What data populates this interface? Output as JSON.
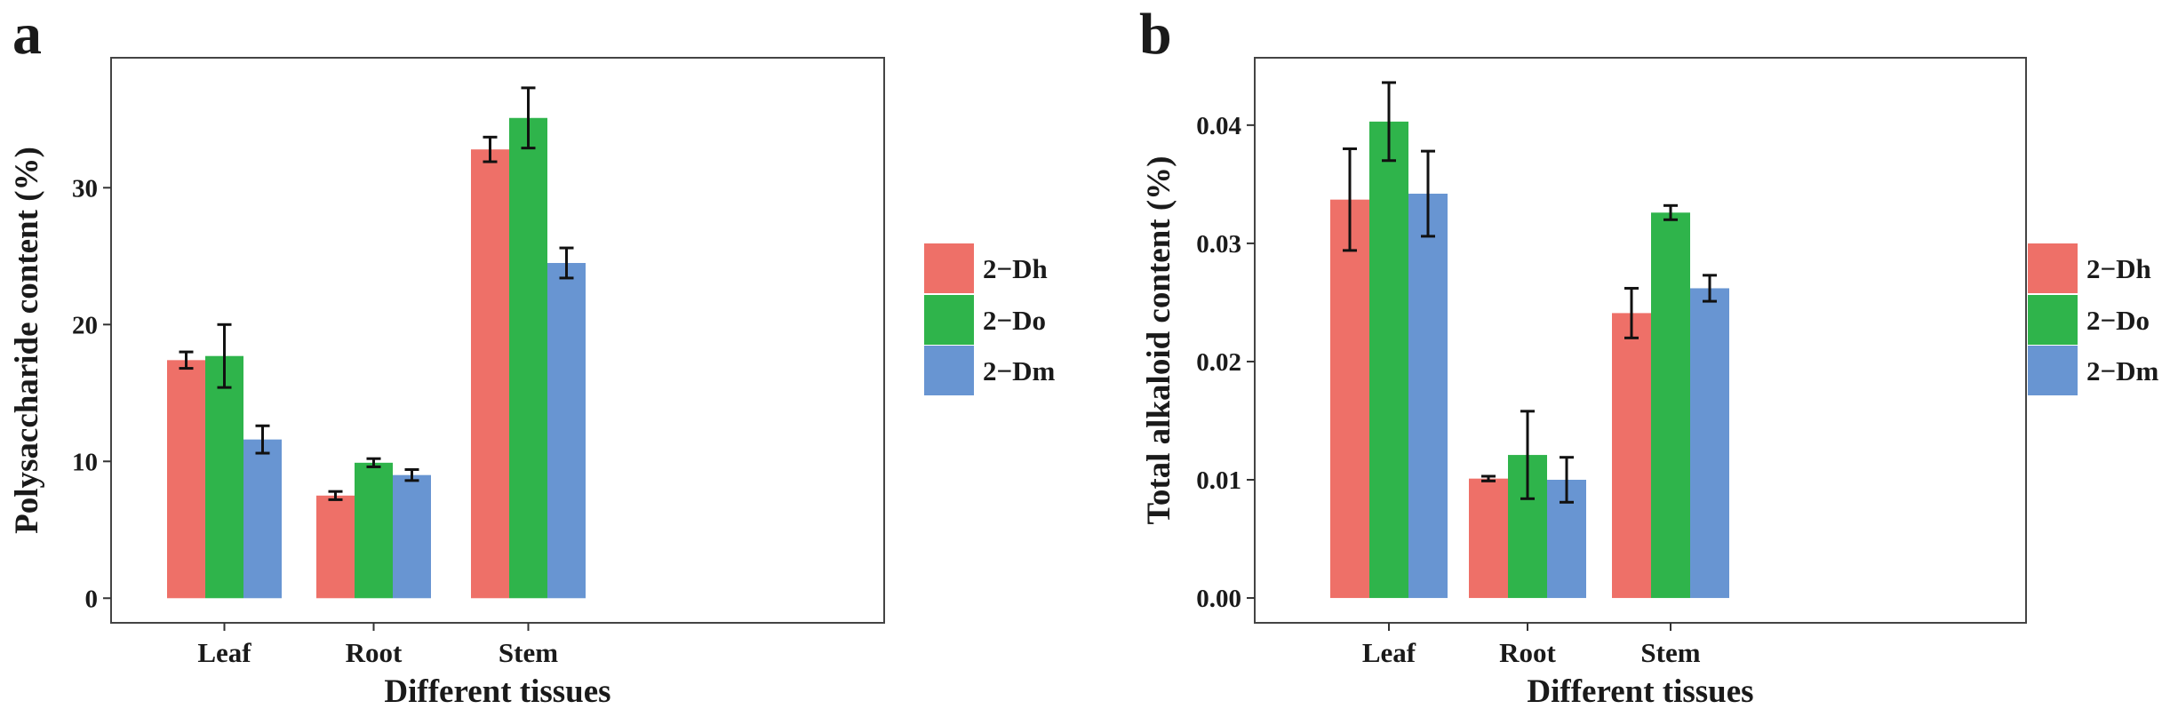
{
  "colors": {
    "2-Dh": "#EE7068",
    "2-Do": "#2FB44B",
    "2-Dm": "#6895D2"
  },
  "chart_data": [
    {
      "type": "bar",
      "panel": "a",
      "title": "",
      "xlabel": "Different tissues",
      "ylabel": "Polysaccharide content (%)",
      "categories": [
        "Leaf",
        "Root",
        "Stem"
      ],
      "ylim": [
        -1.8,
        39.5
      ],
      "yticks": [
        0,
        10,
        20,
        30
      ],
      "ytick_labels": [
        "0",
        "10",
        "20",
        "30"
      ],
      "series": [
        {
          "name": "2−Dh",
          "key": "2-Dh",
          "values": [
            17.4,
            7.5,
            32.8
          ],
          "errors": [
            0.6,
            0.3,
            0.9
          ]
        },
        {
          "name": "2−Do",
          "key": "2-Do",
          "values": [
            17.7,
            9.9,
            35.1
          ],
          "errors": [
            2.3,
            0.3,
            2.2
          ]
        },
        {
          "name": "2−Dm",
          "key": "2-Dm",
          "values": [
            11.6,
            9.0,
            24.5
          ],
          "errors": [
            1.0,
            0.4,
            1.1
          ]
        }
      ],
      "legend": "right"
    },
    {
      "type": "bar",
      "panel": "b",
      "title": "",
      "xlabel": "Different tissues",
      "ylabel": "Total alkaloid content (%)",
      "categories": [
        "Leaf",
        "Root",
        "Stem"
      ],
      "ylim": [
        -0.0021,
        0.0457
      ],
      "yticks": [
        0,
        0.01,
        0.02,
        0.03,
        0.04
      ],
      "ytick_labels": [
        "0.00",
        "0.01",
        "0.02",
        "0.03",
        "0.04"
      ],
      "series": [
        {
          "name": "2−Dh",
          "key": "2-Dh",
          "values": [
            0.0337,
            0.0101,
            0.0241
          ],
          "errors": [
            0.0043,
            0.0002,
            0.0021
          ]
        },
        {
          "name": "2−Do",
          "key": "2-Do",
          "values": [
            0.0403,
            0.0121,
            0.0326
          ],
          "errors": [
            0.0033,
            0.0037,
            0.0006
          ]
        },
        {
          "name": "2−Dm",
          "key": "2-Dm",
          "values": [
            0.0342,
            0.01,
            0.0262
          ],
          "errors": [
            0.0036,
            0.0019,
            0.0011
          ]
        }
      ],
      "legend": "right"
    }
  ]
}
